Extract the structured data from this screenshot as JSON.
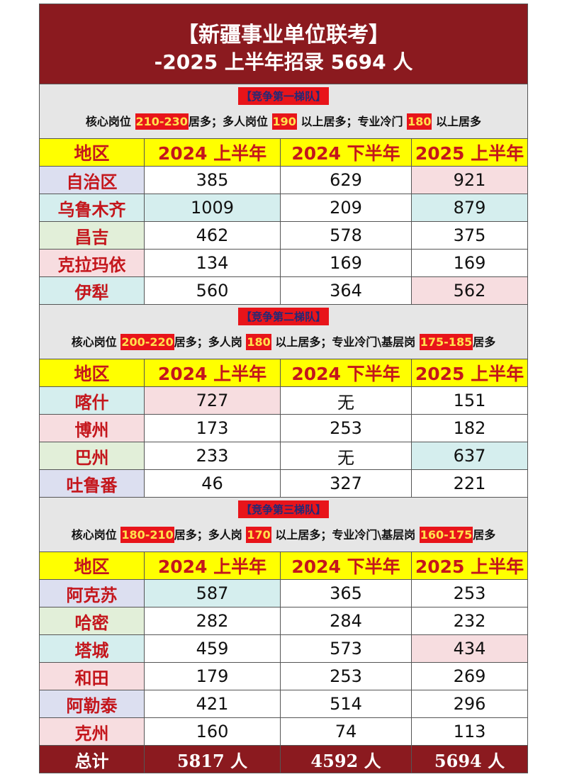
{
  "title": "【新疆事业单位联考】",
  "subtitle": "-2025 上半年招录 5694 人",
  "headers": [
    "地区",
    "2024 上半年",
    "2024 下半年",
    "2025 上半年"
  ],
  "colors": {
    "title_bg": "#8b1a1f",
    "header_bg": "#ffff00",
    "header_text": "#c4161c",
    "highlight": "#e8141a",
    "lavender": "#dcdff0",
    "cyan": "#d5eeee",
    "green": "#e2efd9",
    "pink": "#f7dde0"
  },
  "tiers": [
    {
      "label": "【竞争第一梯队】",
      "desc": [
        {
          "t": "核心岗位 "
        },
        {
          "t": "210-230",
          "hl": true
        },
        {
          "t": "居多；多人岗位 "
        },
        {
          "t": "190",
          "hl": true
        },
        {
          "t": " 以上居多；专业冷门 "
        },
        {
          "t": "180",
          "hl": true
        },
        {
          "t": " 以上居多"
        }
      ],
      "rows": [
        {
          "region": "自治区",
          "values": [
            "385",
            "629",
            "921"
          ],
          "tint": [
            "lavender",
            "",
            "",
            "pink"
          ]
        },
        {
          "region": "乌鲁木齐",
          "values": [
            "1009",
            "209",
            "879"
          ],
          "tint": [
            "cyan",
            "cyan",
            "",
            "cyan"
          ]
        },
        {
          "region": "昌吉",
          "values": [
            "462",
            "578",
            "375"
          ],
          "tint": [
            "green",
            "",
            "",
            ""
          ]
        },
        {
          "region": "克拉玛依",
          "values": [
            "134",
            "169",
            "169"
          ],
          "tint": [
            "pink",
            "",
            "",
            ""
          ]
        },
        {
          "region": "伊犁",
          "values": [
            "560",
            "364",
            "562"
          ],
          "tint": [
            "cyan",
            "",
            "",
            "pink"
          ]
        }
      ]
    },
    {
      "label": "【竞争第二梯队】",
      "desc": [
        {
          "t": "核心岗位 "
        },
        {
          "t": "200-220",
          "hl": true
        },
        {
          "t": "居多；多人岗 "
        },
        {
          "t": "180",
          "hl": true
        },
        {
          "t": " 以上居多；专业冷门\\基层岗 "
        },
        {
          "t": "175-185",
          "hl": true
        },
        {
          "t": "居多"
        }
      ],
      "rows": [
        {
          "region": "喀什",
          "values": [
            "727",
            "无",
            "151"
          ],
          "tint": [
            "cyan",
            "pink",
            "",
            ""
          ]
        },
        {
          "region": "博州",
          "values": [
            "173",
            "253",
            "182"
          ],
          "tint": [
            "pink",
            "",
            "",
            ""
          ]
        },
        {
          "region": "巴州",
          "values": [
            "233",
            "无",
            "637"
          ],
          "tint": [
            "green",
            "",
            "",
            "cyan"
          ]
        },
        {
          "region": "吐鲁番",
          "values": [
            "46",
            "327",
            "221"
          ],
          "tint": [
            "lavender",
            "",
            "",
            ""
          ]
        }
      ]
    },
    {
      "label": "【竞争第三梯队】",
      "desc": [
        {
          "t": "核心岗位 "
        },
        {
          "t": "180-210",
          "hl": true
        },
        {
          "t": "居多；多人岗 "
        },
        {
          "t": "170",
          "hl": true
        },
        {
          "t": " 以上居多；专业冷门\\基层岗 "
        },
        {
          "t": "160-175",
          "hl": true
        },
        {
          "t": "居多"
        }
      ],
      "rows": [
        {
          "region": "阿克苏",
          "values": [
            "587",
            "365",
            "253"
          ],
          "tint": [
            "lavender",
            "cyan",
            "",
            ""
          ]
        },
        {
          "region": "哈密",
          "values": [
            "282",
            "284",
            "232"
          ],
          "tint": [
            "green",
            "",
            "",
            ""
          ]
        },
        {
          "region": "塔城",
          "values": [
            "459",
            "573",
            "434"
          ],
          "tint": [
            "cyan",
            "",
            "",
            "pink"
          ]
        },
        {
          "region": "和田",
          "values": [
            "179",
            "253",
            "269"
          ],
          "tint": [
            "pink",
            "",
            "",
            ""
          ]
        },
        {
          "region": "阿勒泰",
          "values": [
            "421",
            "514",
            "296"
          ],
          "tint": [
            "lavender",
            "",
            "",
            ""
          ]
        },
        {
          "region": "克州",
          "values": [
            "160",
            "74",
            "113"
          ],
          "tint": [
            "pink",
            "",
            "",
            ""
          ]
        }
      ]
    }
  ],
  "total": {
    "label": "总计",
    "values": [
      "5817 人",
      "4592 人",
      "5694 人"
    ]
  }
}
